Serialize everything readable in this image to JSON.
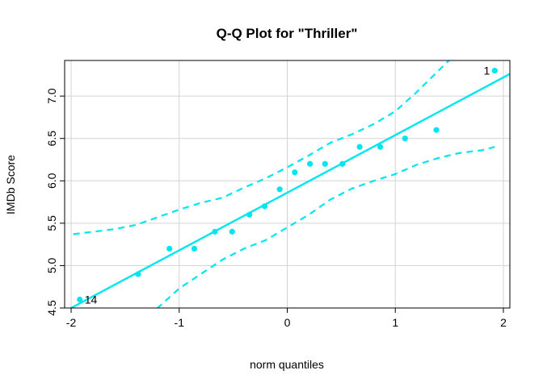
{
  "chart_data": {
    "type": "scatter",
    "title": "Q-Q Plot for \"Thriller\"",
    "xlabel": "norm quantiles",
    "ylabel": "IMDb Score",
    "xlim": [
      -2.06,
      2.06
    ],
    "ylim": [
      4.5,
      7.42
    ],
    "x_ticks": [
      -2,
      -1,
      0,
      1,
      2
    ],
    "x_tick_labels": [
      "-2",
      "-1",
      "0",
      "1",
      "2"
    ],
    "y_ticks": [
      4.5,
      5.0,
      5.5,
      6.0,
      6.5,
      7.0
    ],
    "y_tick_labels": [
      "4.5",
      "5.0",
      "5.5",
      "6.0",
      "6.5",
      "7.0"
    ],
    "grid": true,
    "color": "#00E5EE",
    "points": {
      "x": [
        -1.92,
        -1.38,
        -1.09,
        -0.86,
        -0.67,
        -0.51,
        -0.35,
        -0.21,
        -0.07,
        0.07,
        0.21,
        0.35,
        0.51,
        0.67,
        0.86,
        1.09,
        1.38,
        1.92
      ],
      "y": [
        4.6,
        4.9,
        5.2,
        5.2,
        5.4,
        5.4,
        5.6,
        5.7,
        5.9,
        6.1,
        6.2,
        6.2,
        6.2,
        6.4,
        6.4,
        6.5,
        6.6,
        7.3
      ]
    },
    "reference_line": {
      "intercept": 5.86,
      "slope": 0.68
    },
    "envelope": {
      "x": [
        -1.98,
        -1.6,
        -1.4,
        -1.2,
        -1.0,
        -0.8,
        -0.6,
        -0.4,
        -0.2,
        0.0,
        0.2,
        0.4,
        0.6,
        0.8,
        1.0,
        1.2,
        1.4,
        1.6,
        1.8,
        1.92
      ],
      "upper": [
        5.37,
        5.43,
        5.48,
        5.57,
        5.66,
        5.74,
        5.8,
        5.92,
        6.03,
        6.16,
        6.3,
        6.45,
        6.55,
        6.67,
        6.82,
        7.05,
        7.3,
        7.55,
        7.8,
        7.95
      ],
      "lower": [
        3.6,
        4.0,
        4.25,
        4.5,
        4.73,
        4.9,
        5.07,
        5.2,
        5.3,
        5.45,
        5.6,
        5.78,
        5.91,
        6.0,
        6.08,
        6.19,
        6.27,
        6.33,
        6.36,
        6.4
      ]
    },
    "annotations": [
      {
        "text": "1",
        "x": 1.92,
        "y": 7.3,
        "side": "left"
      },
      {
        "text": "14",
        "x": -1.92,
        "y": 4.6,
        "side": "right"
      }
    ]
  }
}
